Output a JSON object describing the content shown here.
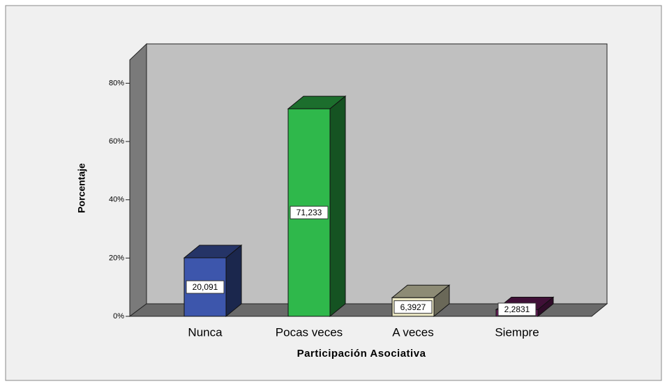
{
  "chart_data": {
    "type": "bar3d",
    "categories": [
      "Nunca",
      "Pocas veces",
      "A veces",
      "Siempre"
    ],
    "values": [
      20.091,
      71.233,
      6.3927,
      2.2831
    ],
    "value_labels": [
      "20,091",
      "71,233",
      "6,3927",
      "2,2831"
    ],
    "colors": [
      "#3d56ac",
      "#2fb84b",
      "#ebe7c3",
      "#6b1a5c"
    ],
    "ylabel": "Porcentaje",
    "xlabel": "Participación Asociativa",
    "ylim": [
      0,
      88
    ],
    "yticks": [
      {
        "value": 0,
        "label": "0%"
      },
      {
        "value": 20,
        "label": "20%"
      },
      {
        "value": 40,
        "label": "40%"
      },
      {
        "value": 60,
        "label": "60%"
      },
      {
        "value": 80,
        "label": "80%"
      }
    ]
  }
}
